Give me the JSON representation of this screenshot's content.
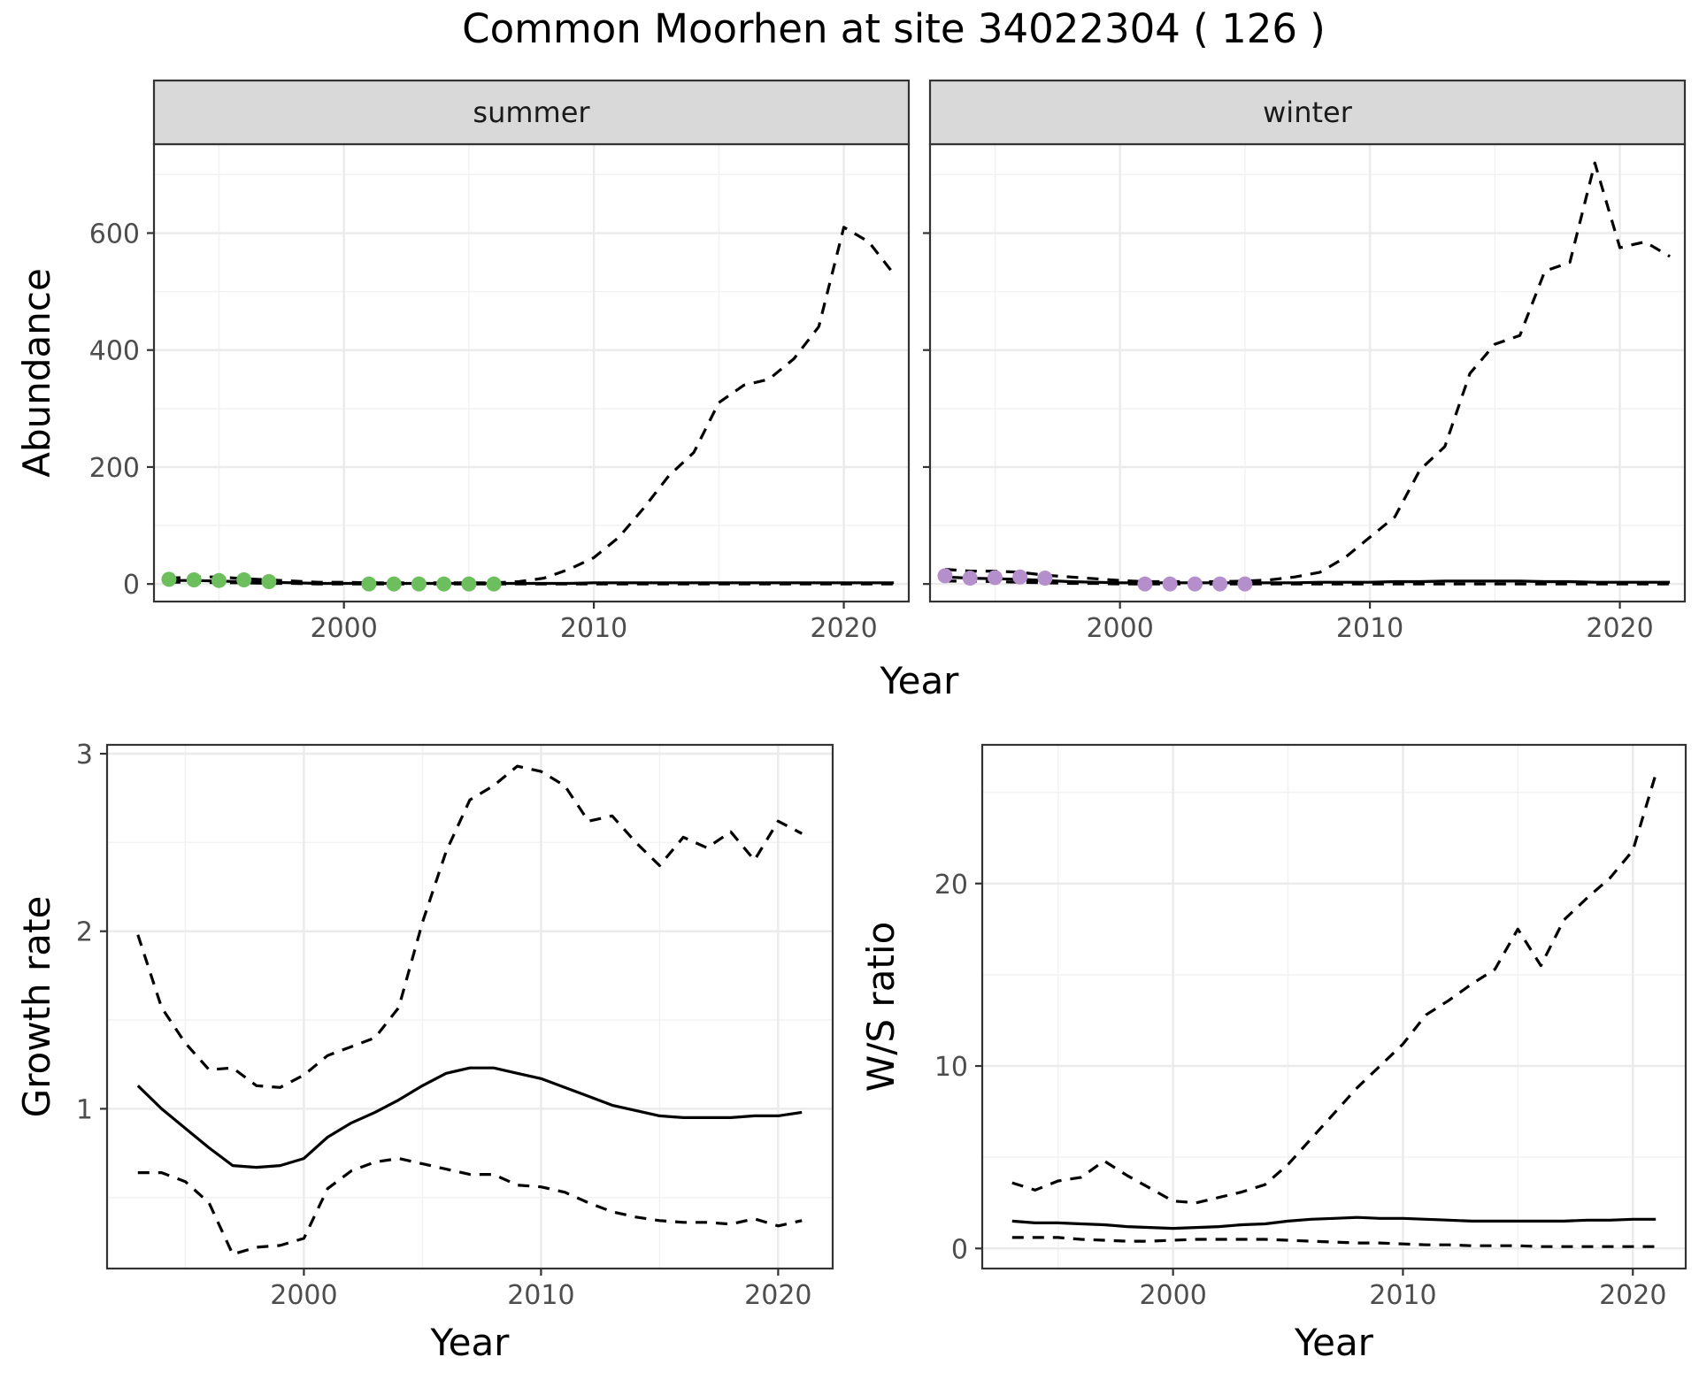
{
  "title": "Common Moorhen at site 34022304 ( 126 )",
  "chart_data": [
    {
      "type": "line",
      "panel": "abundance",
      "facets": [
        "summer",
        "winter"
      ],
      "xlabel": "Year",
      "ylabel": "Abundance",
      "xlim": [
        1992.4,
        2022.6
      ],
      "ylim": [
        -30,
        752
      ],
      "xticks": [
        2000,
        2010,
        2020
      ],
      "xtick_labels": [
        "2000",
        "2010",
        "2020"
      ],
      "yticks": [
        0,
        200,
        400,
        600
      ],
      "ytick_labels": [
        "0",
        "200",
        "400",
        "600"
      ],
      "grid": true,
      "legend": "none",
      "series_by_facet": {
        "summer": {
          "x": [
            1993,
            1994,
            1995,
            1996,
            1997,
            1998,
            1999,
            2000,
            2001,
            2002,
            2003,
            2004,
            2005,
            2006,
            2007,
            2008,
            2009,
            2010,
            2011,
            2012,
            2013,
            2014,
            2015,
            2016,
            2017,
            2018,
            2019,
            2020,
            2021,
            2022
          ],
          "estimate": [
            6,
            6,
            5,
            4,
            3,
            2,
            1,
            1,
            1,
            1,
            1,
            1,
            1,
            1,
            1,
            1,
            1,
            2,
            2,
            2,
            2,
            2,
            2,
            2,
            2,
            2,
            2,
            2,
            2,
            2
          ],
          "upper": [
            10,
            12,
            12,
            9,
            7,
            5,
            3,
            3,
            2,
            2,
            2,
            2,
            2,
            2,
            4,
            10,
            25,
            45,
            80,
            130,
            185,
            225,
            310,
            340,
            350,
            385,
            440,
            610,
            585,
            530
          ],
          "lower": [
            3,
            3,
            2,
            2,
            1,
            1,
            0,
            0,
            0,
            0,
            0,
            0,
            0,
            0,
            0,
            0,
            0,
            0,
            0,
            0,
            0,
            0,
            0,
            0,
            0,
            0,
            0,
            0,
            0,
            0
          ],
          "observed_x": [
            1993,
            1994,
            1995,
            1996,
            1997,
            2001,
            2002,
            2003,
            2004,
            2005,
            2006
          ],
          "observed_y": [
            8,
            7,
            6,
            7,
            4,
            0,
            0,
            0,
            0,
            0,
            0
          ],
          "point_color": "#6DBE5C"
        },
        "winter": {
          "x": [
            1993,
            1994,
            1995,
            1996,
            1997,
            1998,
            1999,
            2000,
            2001,
            2002,
            2003,
            2004,
            2005,
            2006,
            2007,
            2008,
            2009,
            2010,
            2011,
            2012,
            2013,
            2014,
            2015,
            2016,
            2017,
            2018,
            2019,
            2020,
            2021,
            2022
          ],
          "estimate": [
            12,
            10,
            9,
            8,
            6,
            4,
            3,
            2,
            2,
            2,
            2,
            2,
            2,
            2,
            2,
            3,
            3,
            3,
            4,
            4,
            5,
            5,
            5,
            5,
            4,
            4,
            3,
            3,
            3,
            3
          ],
          "upper": [
            25,
            22,
            22,
            20,
            15,
            12,
            9,
            6,
            4,
            4,
            4,
            4,
            5,
            7,
            12,
            20,
            45,
            80,
            115,
            195,
            235,
            360,
            410,
            425,
            535,
            550,
            720,
            575,
            585,
            560
          ],
          "lower": [
            5,
            5,
            4,
            3,
            2,
            1,
            1,
            0,
            0,
            0,
            0,
            0,
            0,
            0,
            0,
            0,
            0,
            0,
            0,
            0,
            0,
            0,
            0,
            0,
            0,
            0,
            0,
            0,
            0,
            0
          ],
          "observed_x": [
            1993,
            1994,
            1995,
            1996,
            1997,
            2001,
            2002,
            2003,
            2004,
            2005
          ],
          "observed_y": [
            14,
            10,
            11,
            12,
            10,
            0,
            0,
            0,
            0,
            0
          ],
          "point_color": "#B58FCC"
        }
      }
    },
    {
      "type": "line",
      "panel": "growth",
      "xlabel": "Year",
      "ylabel": "Growth rate",
      "xlim": [
        1991.7,
        2022.3
      ],
      "ylim": [
        0.1,
        3.05
      ],
      "xticks": [
        2000,
        2010,
        2020
      ],
      "xtick_labels": [
        "2000",
        "2010",
        "2020"
      ],
      "yticks": [
        1,
        2,
        3
      ],
      "ytick_labels": [
        "1",
        "2",
        "3"
      ],
      "grid": true,
      "legend": "none",
      "x": [
        1993,
        1994,
        1995,
        1996,
        1997,
        1998,
        1999,
        2000,
        2001,
        2002,
        2003,
        2004,
        2005,
        2006,
        2007,
        2008,
        2009,
        2010,
        2011,
        2012,
        2013,
        2014,
        2015,
        2016,
        2017,
        2018,
        2019,
        2020,
        2021
      ],
      "estimate": [
        1.13,
        1.0,
        0.89,
        0.78,
        0.68,
        0.67,
        0.68,
        0.72,
        0.84,
        0.92,
        0.98,
        1.05,
        1.13,
        1.2,
        1.23,
        1.23,
        1.2,
        1.17,
        1.12,
        1.07,
        1.02,
        0.99,
        0.96,
        0.95,
        0.95,
        0.95,
        0.96,
        0.96,
        0.98
      ],
      "upper": [
        1.98,
        1.57,
        1.37,
        1.22,
        1.23,
        1.13,
        1.12,
        1.19,
        1.3,
        1.35,
        1.4,
        1.57,
        2.05,
        2.45,
        2.74,
        2.82,
        2.93,
        2.9,
        2.82,
        2.62,
        2.65,
        2.5,
        2.37,
        2.53,
        2.47,
        2.56,
        2.4,
        2.62,
        2.55
      ],
      "lower": [
        0.64,
        0.64,
        0.59,
        0.47,
        0.18,
        0.22,
        0.23,
        0.27,
        0.55,
        0.65,
        0.7,
        0.72,
        0.69,
        0.66,
        0.63,
        0.63,
        0.57,
        0.56,
        0.53,
        0.47,
        0.42,
        0.39,
        0.37,
        0.36,
        0.36,
        0.35,
        0.38,
        0.34,
        0.37
      ]
    },
    {
      "type": "line",
      "panel": "ratio",
      "xlabel": "Year",
      "ylabel": "W/S ratio",
      "xlim": [
        1991.7,
        2022.3
      ],
      "ylim": [
        -1.1,
        27.6
      ],
      "xticks": [
        2000,
        2010,
        2020
      ],
      "xtick_labels": [
        "2000",
        "2010",
        "2020"
      ],
      "yticks": [
        0,
        10,
        20
      ],
      "ytick_labels": [
        "0",
        "10",
        "20"
      ],
      "grid": true,
      "legend": "none",
      "x": [
        1993,
        1994,
        1995,
        1996,
        1997,
        1998,
        1999,
        2000,
        2001,
        2002,
        2003,
        2004,
        2005,
        2006,
        2007,
        2008,
        2009,
        2010,
        2011,
        2012,
        2013,
        2014,
        2015,
        2016,
        2017,
        2018,
        2019,
        2020,
        2021
      ],
      "estimate": [
        1.5,
        1.4,
        1.4,
        1.35,
        1.3,
        1.2,
        1.15,
        1.1,
        1.15,
        1.2,
        1.3,
        1.35,
        1.5,
        1.6,
        1.65,
        1.7,
        1.65,
        1.65,
        1.6,
        1.55,
        1.5,
        1.5,
        1.5,
        1.5,
        1.5,
        1.55,
        1.55,
        1.6,
        1.6
      ],
      "upper": [
        3.6,
        3.2,
        3.7,
        3.9,
        4.8,
        4.0,
        3.3,
        2.6,
        2.5,
        2.8,
        3.1,
        3.5,
        4.6,
        6.0,
        7.4,
        8.8,
        10.0,
        11.2,
        12.8,
        13.6,
        14.5,
        15.3,
        17.5,
        15.5,
        18.0,
        19.2,
        20.3,
        21.8,
        26.0
      ],
      "lower": [
        0.6,
        0.6,
        0.6,
        0.5,
        0.45,
        0.4,
        0.4,
        0.45,
        0.5,
        0.5,
        0.5,
        0.5,
        0.45,
        0.4,
        0.35,
        0.3,
        0.3,
        0.25,
        0.2,
        0.2,
        0.15,
        0.15,
        0.15,
        0.1,
        0.1,
        0.1,
        0.1,
        0.1,
        0.1
      ]
    }
  ]
}
